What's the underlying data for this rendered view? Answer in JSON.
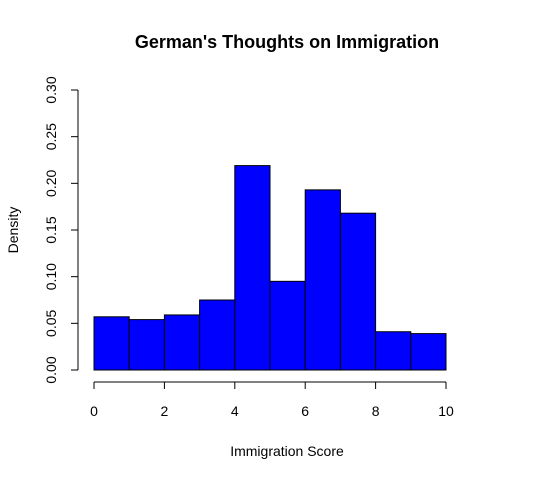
{
  "chart_data": {
    "type": "bar",
    "subtype": "histogram",
    "title": "German's Thoughts on Immigration",
    "xlabel": "Immigration Score",
    "ylabel": "Density",
    "bin_edges": [
      0,
      1,
      2,
      3,
      4,
      5,
      6,
      7,
      8,
      9,
      10
    ],
    "values": [
      0.057,
      0.054,
      0.059,
      0.075,
      0.219,
      0.095,
      0.193,
      0.168,
      0.041,
      0.039
    ],
    "xlim": [
      0,
      10
    ],
    "ylim": [
      0,
      0.3
    ],
    "x_ticks": [
      "0",
      "2",
      "4",
      "6",
      "8",
      "10"
    ],
    "y_ticks": [
      "0.00",
      "0.05",
      "0.10",
      "0.15",
      "0.20",
      "0.25",
      "0.30"
    ],
    "bar_color": "#0000ff",
    "bar_border_color": "#000000",
    "grid": false
  }
}
